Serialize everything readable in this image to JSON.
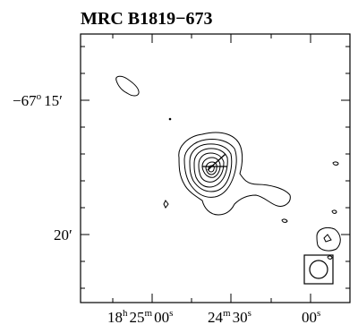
{
  "chart_data": {
    "type": "contour",
    "title": "MRC B1819−673",
    "xlabel": "",
    "ylabel": "",
    "x_ticks": [
      {
        "h": "18",
        "m": "25",
        "s": "00"
      },
      {
        "m": "24",
        "s": "30"
      },
      {
        "s": "00"
      }
    ],
    "y_ticks": [
      {
        "deg": "−67",
        "arcmin": "15"
      },
      {
        "arcmin": "20"
      }
    ],
    "tick_units": {
      "h": "h",
      "m": "m",
      "s": "s",
      "deg": "o",
      "arcmin": "′"
    },
    "contour_levels": 8,
    "beam": "circular",
    "grid": false,
    "line_color": "#000000",
    "background_color": "#ffffff"
  }
}
